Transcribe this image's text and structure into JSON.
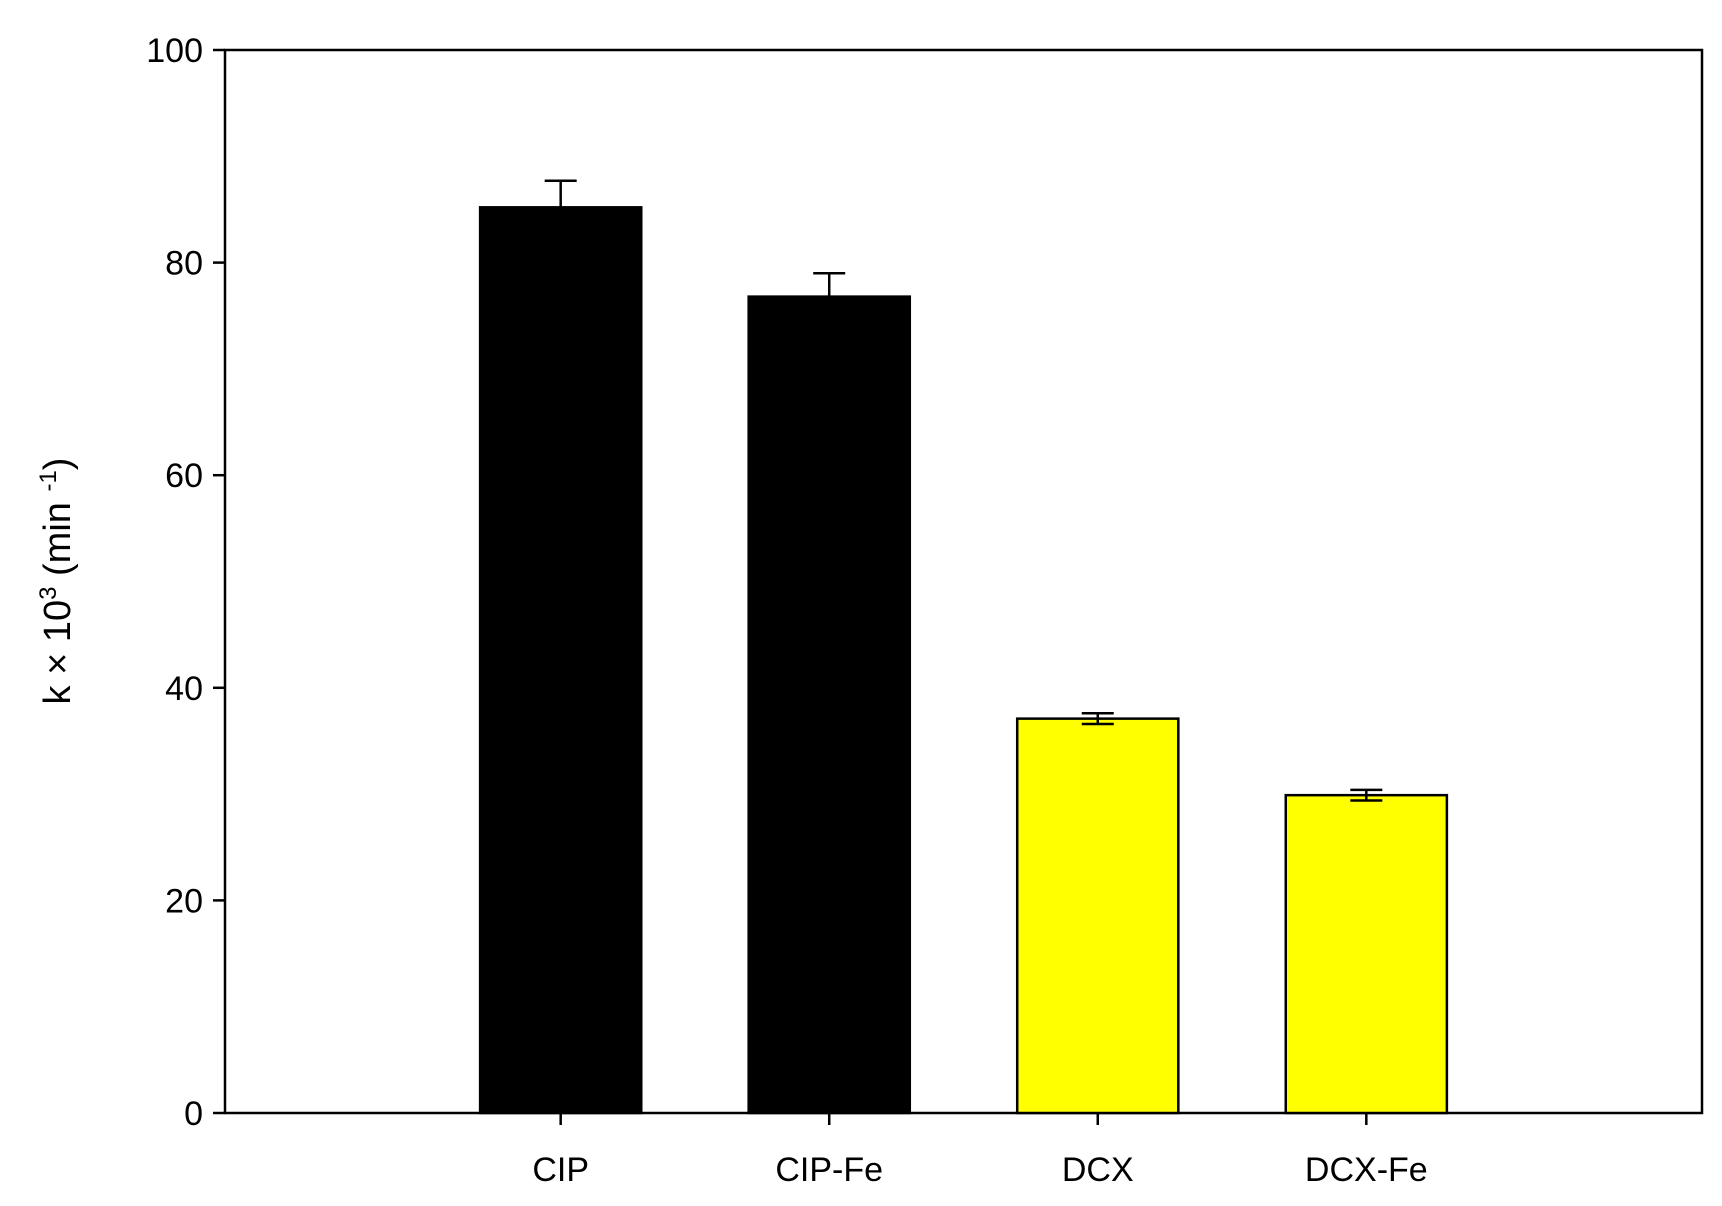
{
  "chart_data": {
    "type": "bar",
    "title": "",
    "xlabel": "",
    "ylabel": {
      "prefix": "k × 10",
      "exp": "3",
      "mid": " (min ",
      "unit_exp": "-1",
      "suffix": ")"
    },
    "categories": [
      "CIP",
      "CIP-Fe",
      "DCX",
      "DCX-Fe"
    ],
    "values": [
      85.2,
      76.8,
      37.1,
      29.9
    ],
    "errors": [
      2.5,
      2.2,
      0.5,
      0.5
    ],
    "colors": [
      "#000000",
      "#000000",
      "#ffff00",
      "#ffff00"
    ],
    "ylim": [
      0,
      100
    ],
    "yticks": [
      0,
      20,
      40,
      60,
      80,
      100
    ],
    "grid": false,
    "legend": "none"
  }
}
